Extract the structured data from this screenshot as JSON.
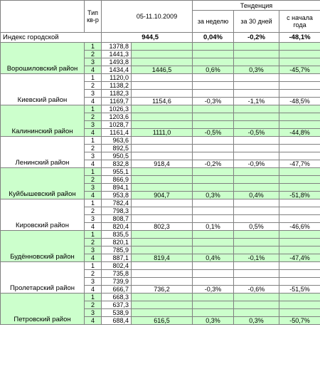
{
  "header": {
    "type_label_line1": "Тип",
    "type_label_line2": "кв-р",
    "date": "05-11.10.2009",
    "trend": "Тенденция",
    "week": "за неделю",
    "days30": "за 30 дней",
    "year_line1": "с начала",
    "year_line2": "года"
  },
  "index": {
    "name": "Индекс городской",
    "value": "944,5",
    "week": "0,04%",
    "days30": "-0,2%",
    "year": "-48,1%"
  },
  "districts": [
    {
      "name": "Ворошиловский район",
      "rows": [
        {
          "type": "1",
          "price": "1378,8"
        },
        {
          "type": "2",
          "price": "1441,3"
        },
        {
          "type": "3",
          "price": "1493,8"
        },
        {
          "type": "4",
          "price": "1434,4"
        }
      ],
      "avg": "1446,5",
      "week": "0,6%",
      "days30": "0,3%",
      "year": "-45,7%"
    },
    {
      "name": "Киевский район",
      "rows": [
        {
          "type": "1",
          "price": "1120,0"
        },
        {
          "type": "2",
          "price": "1138,2"
        },
        {
          "type": "3",
          "price": "1182,3"
        },
        {
          "type": "4",
          "price": "1169,7"
        }
      ],
      "avg": "1154,6",
      "week": "-0,3%",
      "days30": "-1,1%",
      "year": "-48,5%"
    },
    {
      "name": "Калининский район",
      "rows": [
        {
          "type": "1",
          "price": "1026,3"
        },
        {
          "type": "2",
          "price": "1203,6"
        },
        {
          "type": "3",
          "price": "1028,7"
        },
        {
          "type": "4",
          "price": "1161,4"
        }
      ],
      "avg": "1111,0",
      "week": "-0,5%",
      "days30": "-0,5%",
      "year": "-44,8%"
    },
    {
      "name": "Ленинский район",
      "rows": [
        {
          "type": "1",
          "price": "963,6"
        },
        {
          "type": "2",
          "price": "892,5"
        },
        {
          "type": "3",
          "price": "950,5"
        },
        {
          "type": "4",
          "price": "832,8"
        }
      ],
      "avg": "918,4",
      "week": "-0,2%",
      "days30": "-0,9%",
      "year": "-47,7%"
    },
    {
      "name": "Куйбышевский район",
      "rows": [
        {
          "type": "1",
          "price": "955,1"
        },
        {
          "type": "2",
          "price": "866,9"
        },
        {
          "type": "3",
          "price": "894,1"
        },
        {
          "type": "4",
          "price": "953,8"
        }
      ],
      "avg": "904,7",
      "week": "0,3%",
      "days30": "0,4%",
      "year": "-51,8%"
    },
    {
      "name": "Кировский район",
      "rows": [
        {
          "type": "1",
          "price": "782,4"
        },
        {
          "type": "2",
          "price": "798,3"
        },
        {
          "type": "3",
          "price": "808,7"
        },
        {
          "type": "4",
          "price": "820,4"
        }
      ],
      "avg": "802,3",
      "week": "0,1%",
      "days30": "0,5%",
      "year": "-46,6%"
    },
    {
      "name": "Будённовский район",
      "rows": [
        {
          "type": "1",
          "price": "835,5"
        },
        {
          "type": "2",
          "price": "820,1"
        },
        {
          "type": "3",
          "price": "785,9"
        },
        {
          "type": "4",
          "price": "887,1"
        }
      ],
      "avg": "819,4",
      "week": "0,4%",
      "days30": "-0,1%",
      "year": "-47,4%"
    },
    {
      "name": "Пролетарский район",
      "rows": [
        {
          "type": "1",
          "price": "802,4"
        },
        {
          "type": "2",
          "price": "735,8"
        },
        {
          "type": "3",
          "price": "739,9"
        },
        {
          "type": "4",
          "price": "666,7"
        }
      ],
      "avg": "736,2",
      "week": "-0,3%",
      "days30": "-0,6%",
      "year": "-51,5%"
    },
    {
      "name": "Петровский район",
      "rows": [
        {
          "type": "1",
          "price": "668,3"
        },
        {
          "type": "2",
          "price": "637,3"
        },
        {
          "type": "3",
          "price": "538,9"
        },
        {
          "type": "4",
          "price": "688,4"
        }
      ],
      "avg": "616,5",
      "week": "0,3%",
      "days30": "0,3%",
      "year": "-50,7%"
    }
  ],
  "colors": {
    "green": "#ccffcc",
    "white": "#ffffff",
    "border": "#808080"
  }
}
